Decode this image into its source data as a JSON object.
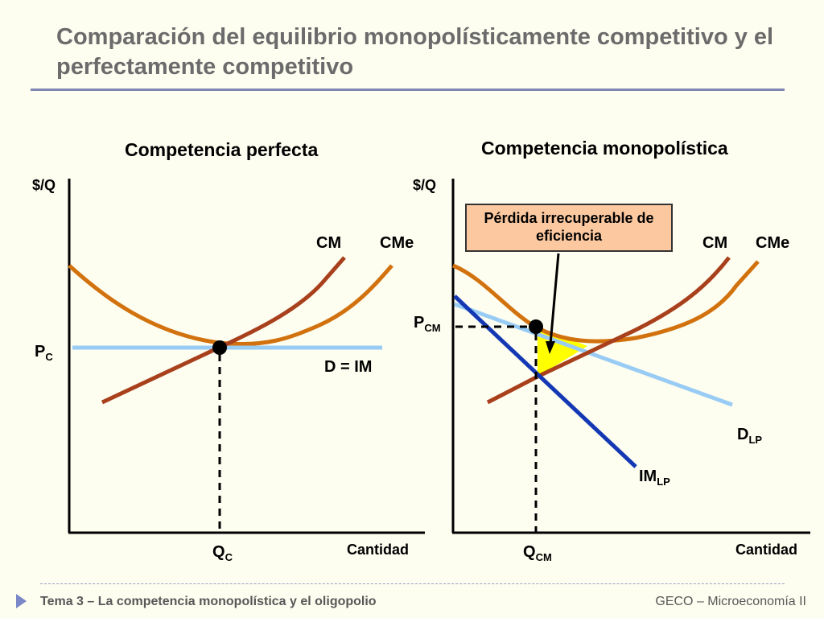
{
  "title": "Comparación del equilibrio monopolísticamente competitivo y el perfectamente competitivo",
  "left_panel": {
    "heading": "Competencia perfecta",
    "y_axis": "$/Q",
    "x_axis": "Cantidad",
    "cm_label": "CM",
    "cme_label": "CMe",
    "demand_label": "D = IM",
    "price_label": {
      "main": "P",
      "sub": "C"
    },
    "qty_label": {
      "main": "Q",
      "sub": "C"
    }
  },
  "right_panel": {
    "heading": "Competencia monopolística",
    "y_axis": "$/Q",
    "x_axis": "Cantidad",
    "cm_label": "CM",
    "cme_label": "CMe",
    "demand_label": {
      "main": "D",
      "sub": "LP"
    },
    "mr_label": {
      "main": "IM",
      "sub": "LP"
    },
    "price_label": {
      "main": "P",
      "sub": "CM"
    },
    "qty_label": {
      "main": "Q",
      "sub": "CM"
    },
    "callout": "Pérdida irrecuperable de eficiencia"
  },
  "footer": {
    "left": "Tema 3 –  La competencia monopolística y el oligopolio",
    "right": "GECO – Microeconomía II"
  },
  "colors": {
    "background": "#fdfdf0",
    "cm_curve": "#a8401c",
    "cme_curve": "#d2720e",
    "demand_curve": "#99ccf4",
    "mr_curve": "#1438b4",
    "deadweight_fill": "#ffff00",
    "callout_fill": "#fcc8a0"
  }
}
